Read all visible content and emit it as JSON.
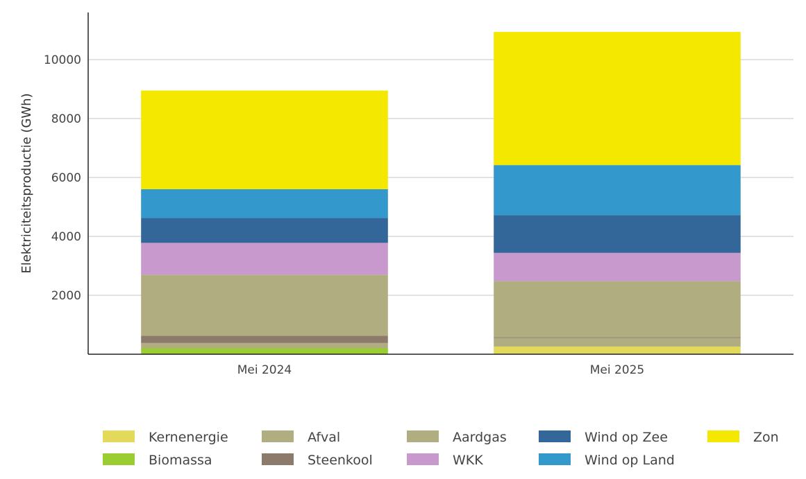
{
  "chart_data": {
    "type": "bar",
    "stacked": true,
    "categories": [
      "Mei 2024",
      "Mei 2025"
    ],
    "ylabel": "Elektriciteitsproductie (GWh)",
    "xlabel": "",
    "ylim": [
      0,
      11600
    ],
    "yticks": [
      2000,
      4000,
      6000,
      8000,
      10000
    ],
    "grid": "horizontal",
    "legend_position": "bottom",
    "series": [
      {
        "name": "Kernenergie",
        "color": "#e3d95a",
        "values": [
          0,
          260
        ]
      },
      {
        "name": "Biomassa",
        "color": "#9acd32",
        "values": [
          200,
          0
        ]
      },
      {
        "name": "Afval",
        "color": "#b0ae80",
        "values": [
          180,
          290
        ]
      },
      {
        "name": "Steenkool",
        "color": "#8c7b6b",
        "values": [
          250,
          30
        ]
      },
      {
        "name": "Aardgas",
        "color": "#b0ae80",
        "values": [
          2070,
          1900
        ]
      },
      {
        "name": "WKK",
        "color": "#c899cc",
        "values": [
          1080,
          960
        ]
      },
      {
        "name": "Wind op Zee",
        "color": "#336699",
        "values": [
          850,
          1280
        ]
      },
      {
        "name": "Wind op Land",
        "color": "#3399cc",
        "values": [
          970,
          1700
        ]
      },
      {
        "name": "Zon",
        "color": "#f5e800",
        "values": [
          3350,
          4520
        ]
      }
    ]
  }
}
